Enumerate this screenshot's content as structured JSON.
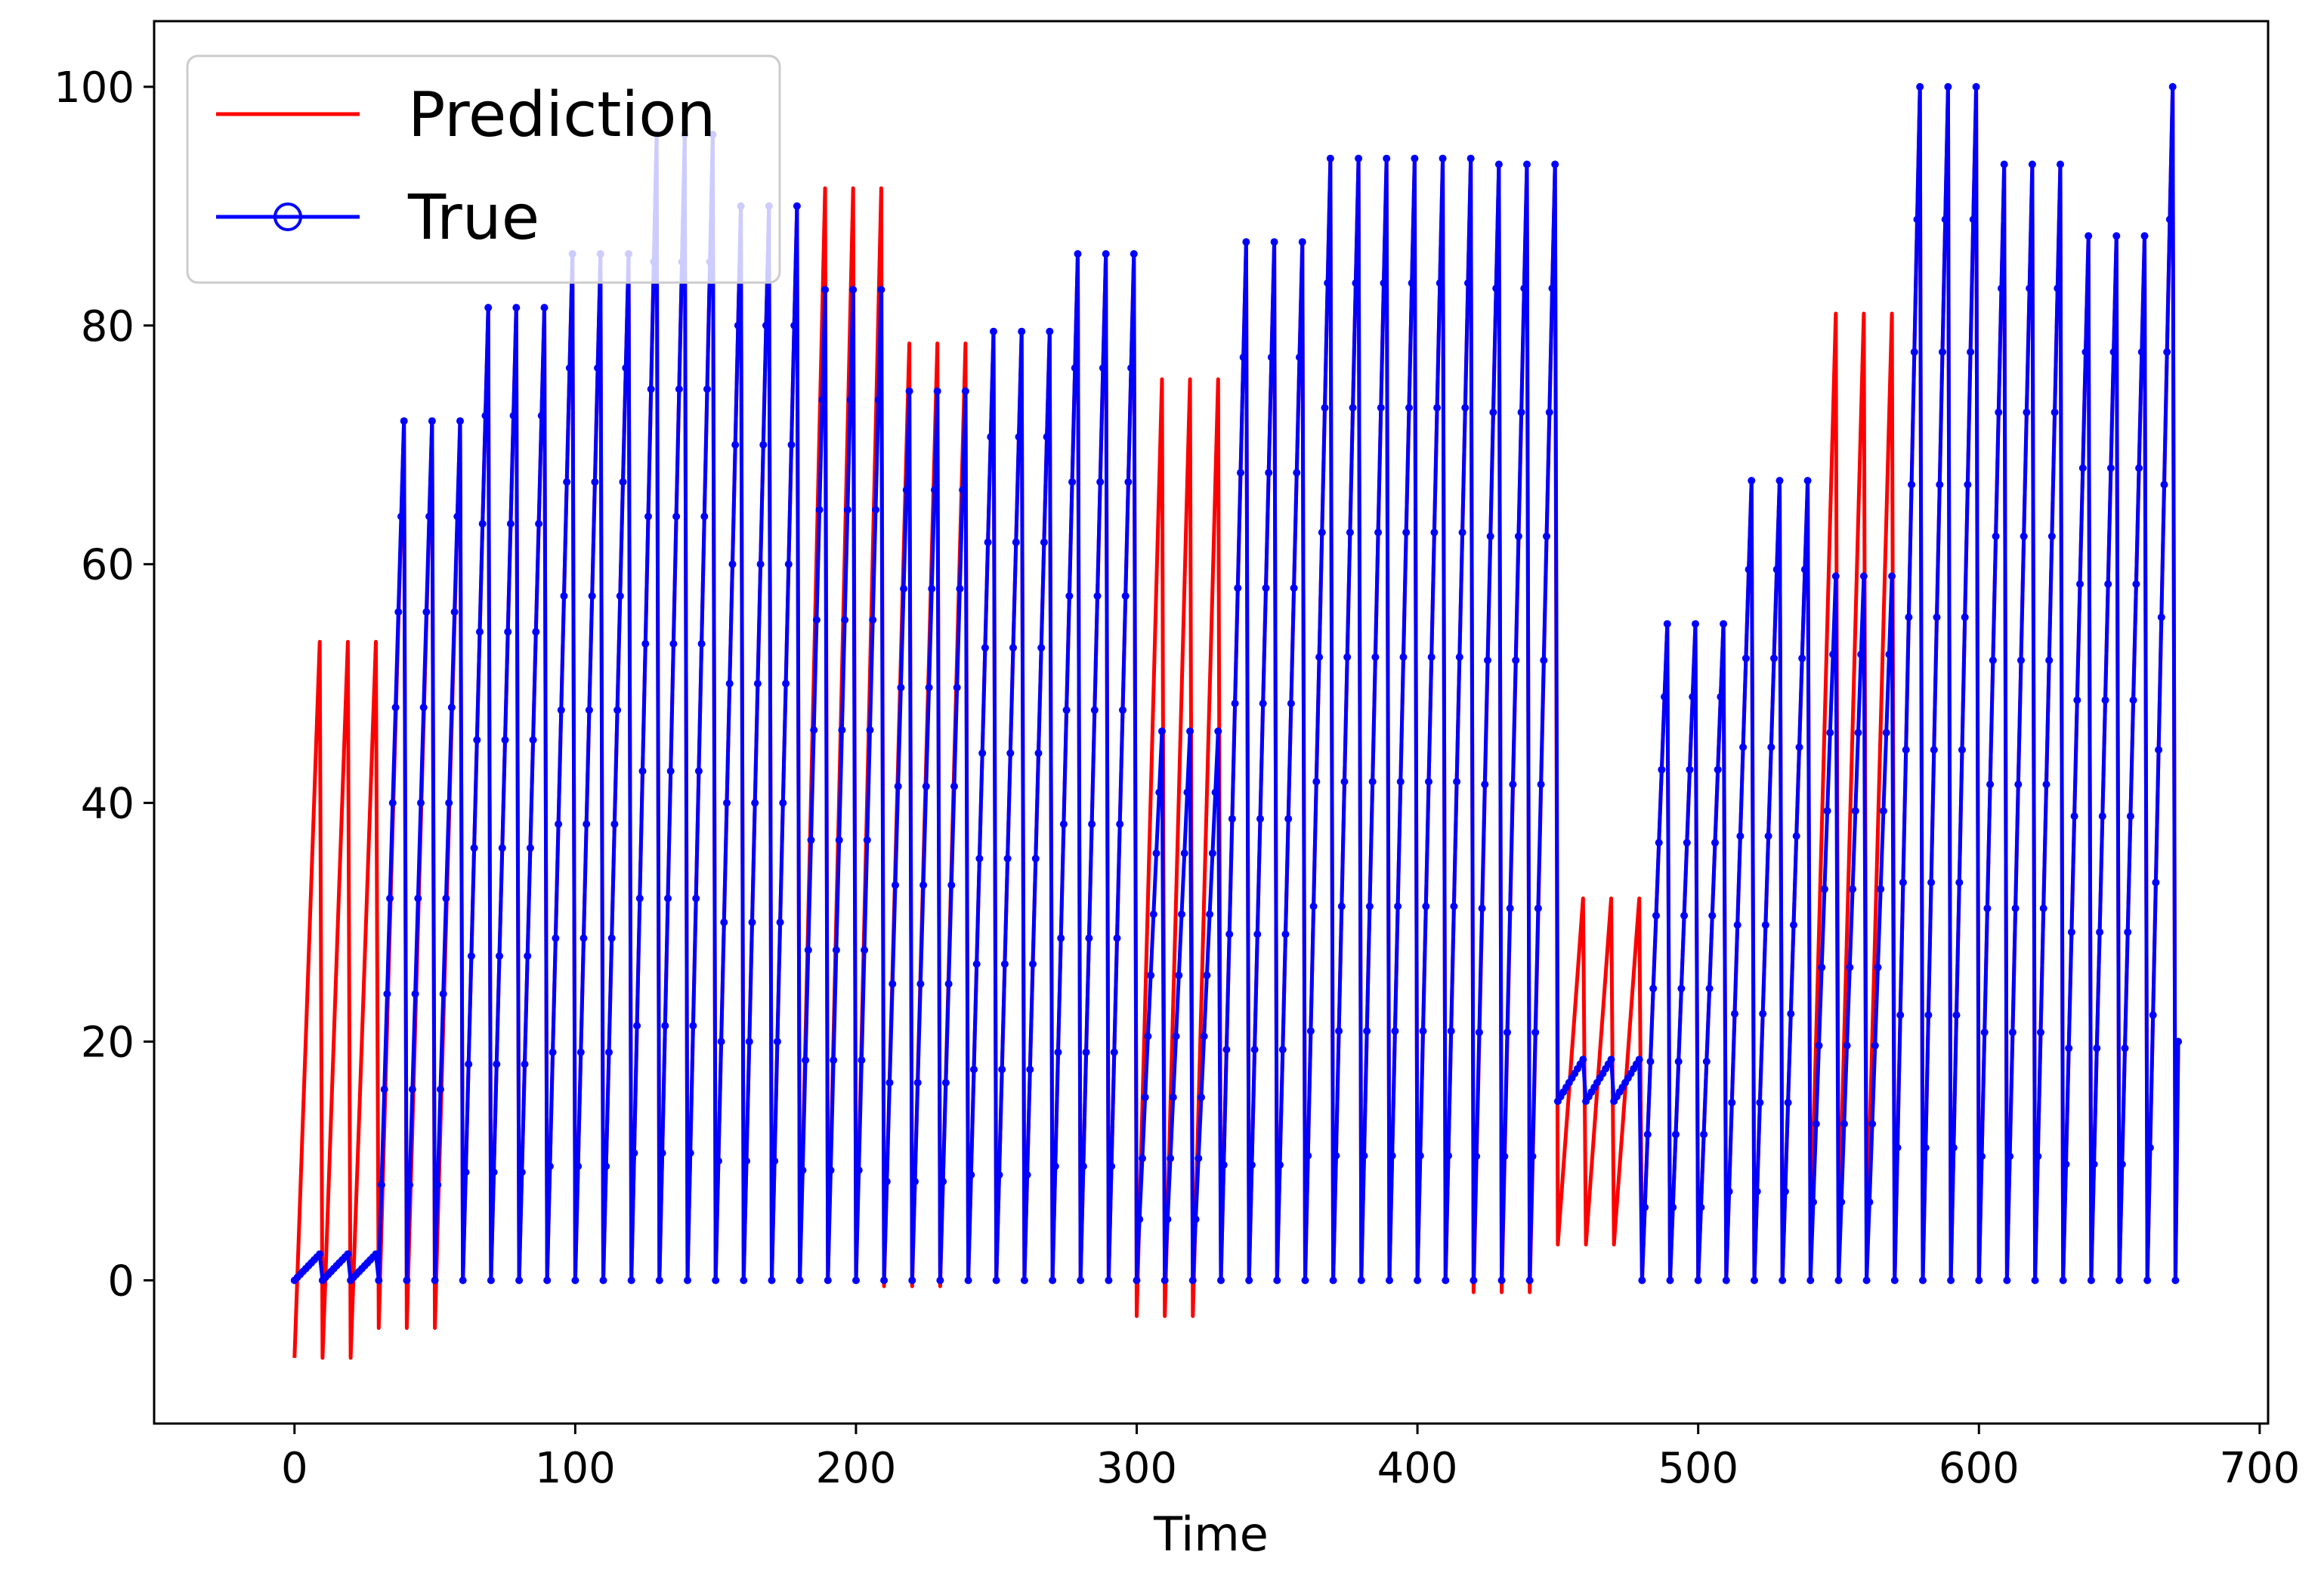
{
  "chart_data": {
    "type": "line",
    "title": "",
    "xlabel": "Time",
    "ylabel": "",
    "xlim": [
      -50,
      703
    ],
    "ylim": [
      -12,
      105.5
    ],
    "xticks": [
      0,
      100,
      200,
      300,
      400,
      500,
      600,
      700
    ],
    "yticks": [
      0,
      20,
      40,
      60,
      80,
      100
    ],
    "grid": false,
    "legend_position": "top-left",
    "cycle_period": 10,
    "total_points": 672,
    "series": [
      {
        "name": "Prediction",
        "color": "#ff0000",
        "marker": "none",
        "cycle_peaks": [
          53.5,
          53.5,
          53.5,
          72,
          72,
          72,
          81.5,
          81.5,
          81.5,
          86,
          86,
          86,
          96,
          96,
          96,
          90,
          90,
          90,
          91.5,
          91.5,
          91.5,
          78.5,
          78.5,
          78.5,
          79.5,
          79.5,
          79.5,
          86,
          86,
          86,
          75.5,
          75.5,
          75.5,
          87,
          87,
          87,
          94,
          94,
          94,
          94,
          94,
          94,
          93.5,
          93.5,
          93.5,
          32,
          32,
          32,
          55,
          55,
          55,
          67,
          67,
          67,
          81,
          81,
          81,
          100,
          100,
          100,
          93.5,
          93.5,
          93.5,
          87.5,
          87.5,
          87.5,
          100,
          100,
          100
        ],
        "cycle_troughs": [
          -6.5,
          -6.5,
          -6.5,
          -4,
          -4,
          -4,
          0,
          0,
          0,
          0,
          0,
          0,
          0,
          0,
          0,
          0,
          0,
          0,
          0,
          0,
          0,
          -0.5,
          -0.5,
          -0.5,
          0,
          0,
          0,
          0,
          0,
          0,
          -3,
          -3,
          -3,
          0,
          0,
          0,
          0,
          0,
          0,
          0,
          0,
          0,
          -1,
          -1,
          -1,
          3,
          3,
          3,
          0,
          0,
          0,
          0,
          0,
          0,
          3,
          3,
          3,
          0,
          0,
          0,
          0,
          0,
          0,
          0,
          0,
          0,
          0,
          0,
          0
        ]
      },
      {
        "name": "True",
        "color": "#0000ff",
        "marker": "o",
        "cycle_peaks": [
          2.2,
          2.2,
          2.2,
          72,
          72,
          72,
          81.5,
          81.5,
          81.5,
          86,
          86,
          86,
          96,
          96,
          96,
          90,
          90,
          90,
          83,
          83,
          83,
          74.5,
          74.5,
          74.5,
          79.5,
          79.5,
          79.5,
          86,
          86,
          86,
          46,
          46,
          46,
          87,
          87,
          87,
          94,
          94,
          94,
          94,
          94,
          94,
          93.5,
          93.5,
          93.5,
          18.5,
          18.5,
          18.5,
          55,
          55,
          55,
          67,
          67,
          67,
          59,
          59,
          59,
          100,
          100,
          100,
          93.5,
          93.5,
          93.5,
          87.5,
          87.5,
          87.5,
          100,
          100,
          100
        ],
        "cycle_troughs": [
          0,
          0,
          0,
          0,
          0,
          0,
          0,
          0,
          0,
          0,
          0,
          0,
          0,
          0,
          0,
          0,
          0,
          0,
          0,
          0,
          0,
          0,
          0,
          0,
          0,
          0,
          0,
          0,
          0,
          0,
          0,
          0,
          0,
          0,
          0,
          0,
          0,
          0,
          0,
          0,
          0,
          0,
          0,
          0,
          0,
          15,
          15,
          15,
          0,
          0,
          0,
          0,
          0,
          0,
          0,
          0,
          0,
          0,
          0,
          0,
          0,
          0,
          0,
          0,
          0,
          0,
          0,
          0,
          0
        ]
      }
    ]
  }
}
